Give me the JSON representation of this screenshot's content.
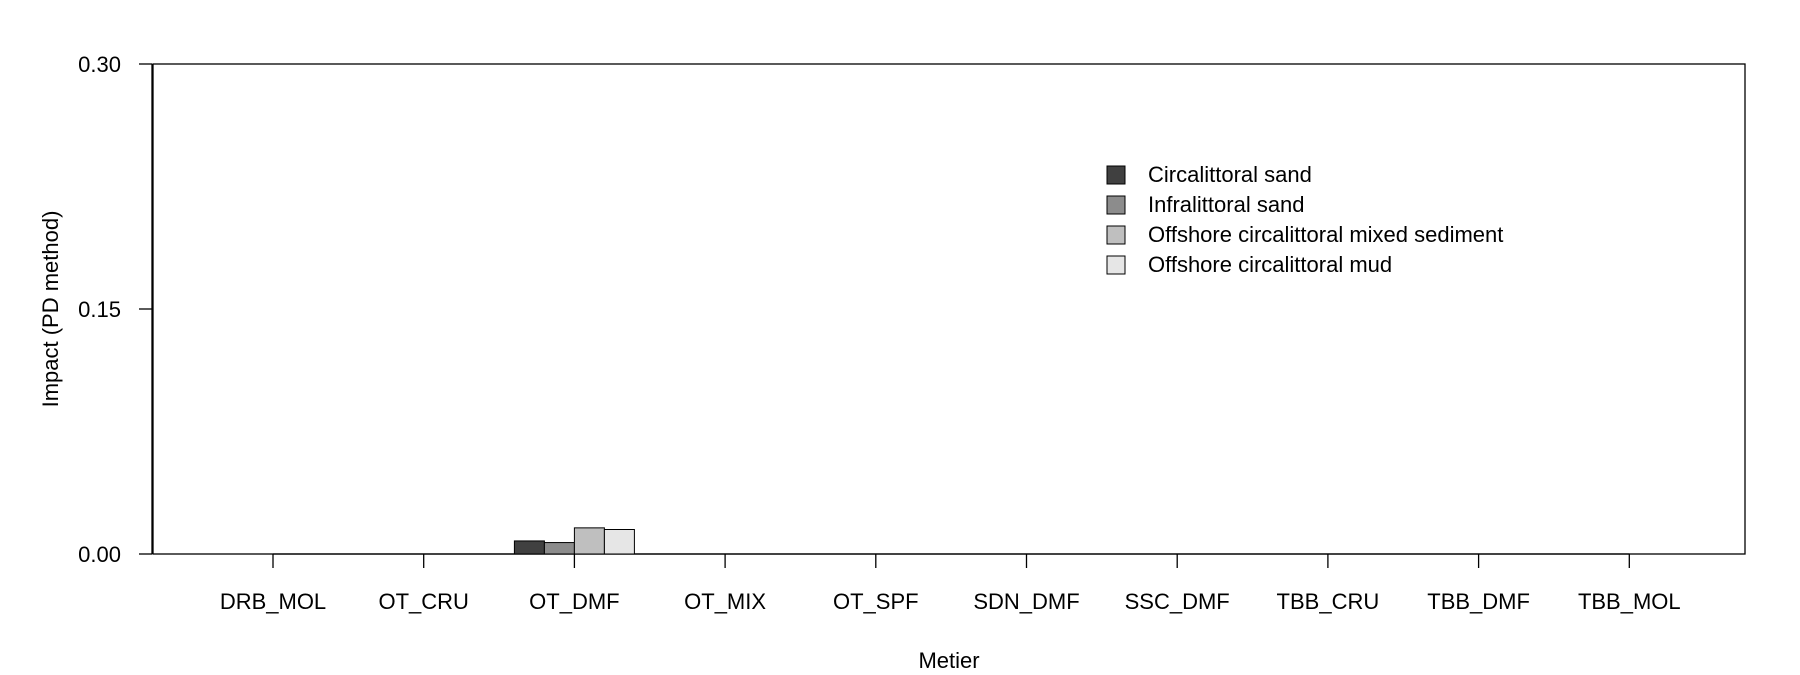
{
  "chart_data": {
    "type": "bar",
    "xlabel": "Metier",
    "ylabel": "Impact (PD method)",
    "ylim": [
      0,
      0.3
    ],
    "yticks": [
      "0.00",
      "0.15",
      "0.30"
    ],
    "ytick_values": [
      0,
      0.15,
      0.3
    ],
    "categories": [
      "DRB_MOL",
      "OT_CRU",
      "OT_DMF",
      "OT_MIX",
      "OT_SPF",
      "SDN_DMF",
      "SSC_DMF",
      "TBB_CRU",
      "TBB_DMF",
      "TBB_MOL"
    ],
    "series": [
      {
        "name": "Circalittoral sand",
        "color": "#404040",
        "values": [
          0,
          0,
          0.008,
          0,
          0,
          0,
          0,
          0,
          0,
          0
        ]
      },
      {
        "name": "Infralittoral sand",
        "color": "#8c8c8c",
        "values": [
          0,
          0,
          0.007,
          0,
          0,
          0,
          0,
          0,
          0,
          0
        ]
      },
      {
        "name": "Offshore circalittoral mixed sediment",
        "color": "#bfbfbf",
        "values": [
          0,
          0,
          0.016,
          0,
          0,
          0,
          0,
          0,
          0,
          0
        ]
      },
      {
        "name": "Offshore circalittoral mud",
        "color": "#e6e6e6",
        "values": [
          0,
          0,
          0.015,
          0,
          0,
          0,
          0,
          0,
          0,
          0
        ]
      }
    ],
    "legend_position": "top-right",
    "grid": false
  }
}
